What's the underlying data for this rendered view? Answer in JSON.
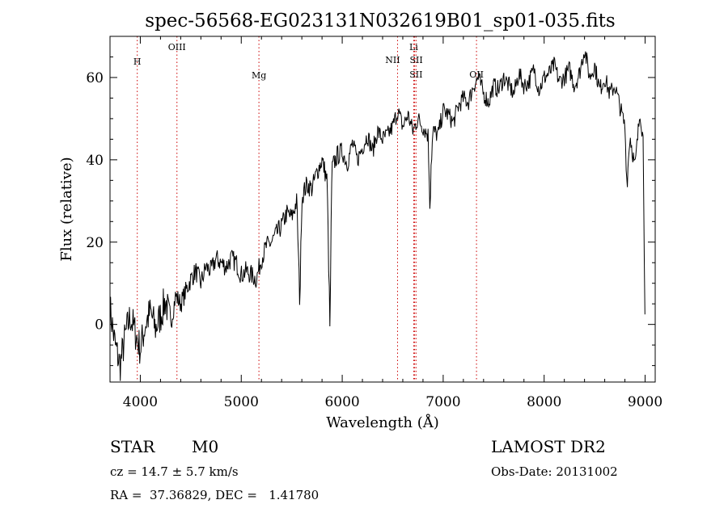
{
  "header": {
    "title": "spec-56568-EG023131N032619B01_sp01-035.fits"
  },
  "footer": {
    "class_label": "STAR",
    "subclass_label": "M0",
    "cz_text": "cz = 14.7 ± 5.7 km/s",
    "coords_text": "RA =  37.36829, DEC =   1.41780",
    "survey_label": "LAMOST DR2",
    "obs_date_text": "Obs-Date: 20131002"
  },
  "chart_data": {
    "type": "line",
    "title": "spec-56568-EG023131N032619B01_sp01-035.fits",
    "xlabel": "Wavelength (Å)",
    "ylabel": "Flux (relative)",
    "xlim": [
      3700,
      9100
    ],
    "ylim": [
      -14,
      70
    ],
    "xticks": [
      4000,
      5000,
      6000,
      7000,
      8000,
      9000
    ],
    "yticks": [
      0,
      20,
      40,
      60
    ],
    "grid": false,
    "line_color": "#000000",
    "marker_color": "#cc0000",
    "lines": [
      {
        "label": "H",
        "wavelength": 3970
      },
      {
        "label": "OIII",
        "wavelength": 4363
      },
      {
        "label": "Mg",
        "wavelength": 5175
      },
      {
        "label": "NII",
        "wavelength": 6548
      },
      {
        "label": "Li",
        "wavelength": 6708
      },
      {
        "label": "SII",
        "wavelength": 6717
      },
      {
        "label": "SII",
        "wavelength": 6731
      },
      {
        "label": "OII",
        "wavelength": 7330
      }
    ],
    "series": [
      {
        "x": [
          3700,
          3750,
          3800,
          3850,
          3900,
          3950,
          4000,
          4050,
          4100,
          4150,
          4200,
          4250,
          4300,
          4350,
          4400,
          4450,
          4500,
          4550,
          4600,
          4650,
          4700,
          4750,
          4800,
          4850,
          4900,
          4950,
          5000,
          5050,
          5100,
          5150,
          5200,
          5250,
          5300,
          5350,
          5400,
          5450,
          5500,
          5550,
          5580,
          5600,
          5650,
          5700,
          5750,
          5800,
          5850,
          5880,
          5890,
          5900,
          5950,
          6000,
          6050,
          6100,
          6150,
          6200,
          6250,
          6300,
          6350,
          6400,
          6450,
          6500,
          6550,
          6600,
          6650,
          6700,
          6750,
          6800,
          6850,
          6870,
          6880,
          6900,
          6950,
          7000,
          7050,
          7100,
          7150,
          7200,
          7250,
          7300,
          7350,
          7400,
          7450,
          7500,
          7550,
          7600,
          7650,
          7700,
          7750,
          7800,
          7850,
          7900,
          7950,
          8000,
          8050,
          8100,
          8150,
          8200,
          8250,
          8300,
          8350,
          8400,
          8450,
          8500,
          8550,
          8600,
          8650,
          8700,
          8750,
          8800,
          8820,
          8850,
          8900,
          8950,
          8980,
          9000
        ],
        "y": [
          4,
          -5,
          -10,
          -3,
          2,
          -2,
          -6,
          0,
          3,
          -1,
          2,
          6,
          0,
          7,
          5,
          8,
          11,
          13,
          10,
          14,
          13,
          16,
          15,
          14,
          16,
          15,
          12,
          13,
          12,
          11,
          16,
          19,
          20,
          22,
          24,
          27,
          26,
          30,
          5,
          31,
          34,
          33,
          37,
          40,
          35,
          -3,
          25,
          38,
          41,
          42,
          39,
          44,
          40,
          43,
          46,
          42,
          47,
          45,
          46,
          48,
          52,
          48,
          51,
          47,
          50,
          48,
          46,
          28,
          39,
          47,
          46,
          52,
          51,
          49,
          53,
          55,
          54,
          58,
          60,
          56,
          54,
          58,
          57,
          60,
          58,
          56,
          61,
          58,
          59,
          62,
          57,
          60,
          61,
          63,
          59,
          60,
          62,
          58,
          61,
          67,
          60,
          63,
          57,
          60,
          56,
          58,
          53,
          48,
          34,
          46,
          38,
          52,
          45,
          0
        ]
      }
    ]
  }
}
